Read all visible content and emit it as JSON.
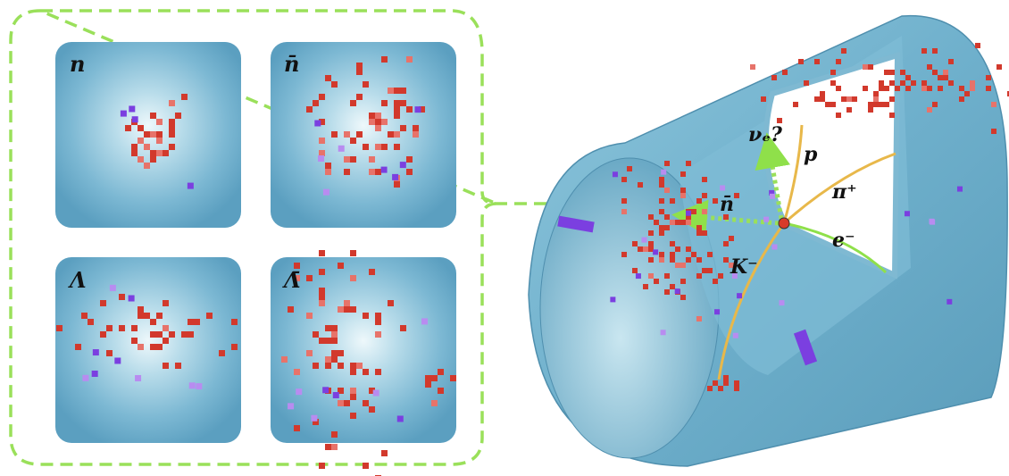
{
  "panels": [
    {
      "label": "n"
    },
    {
      "label": "n̄"
    },
    {
      "label": "Λ"
    },
    {
      "label": "Λ̄"
    }
  ],
  "detector": {
    "labels": {
      "neutrino": "νₑ?",
      "proton": "p",
      "pion": "π⁺",
      "electron": "e⁻",
      "kaon": "K⁻",
      "antineutron": "n̄"
    }
  }
}
